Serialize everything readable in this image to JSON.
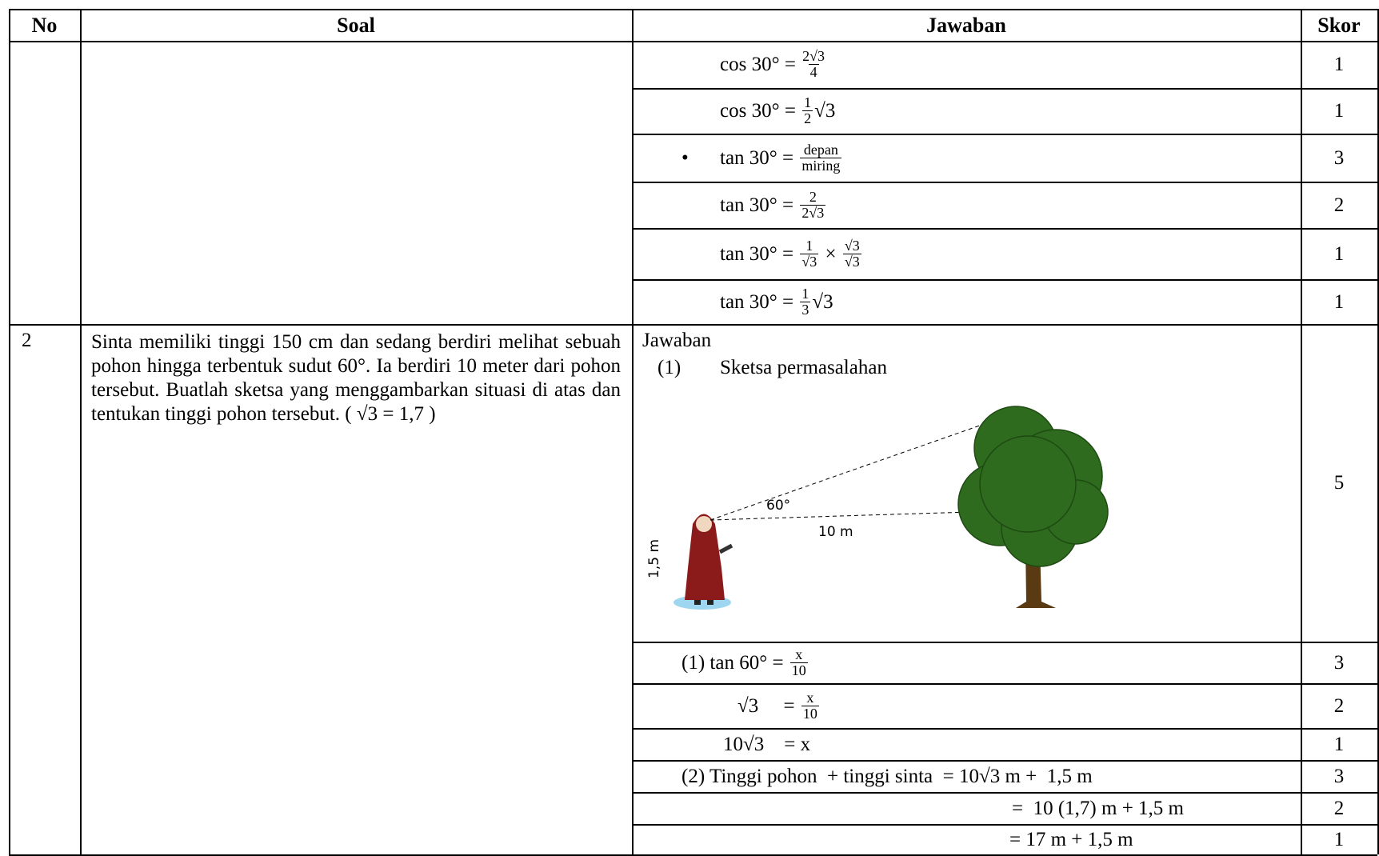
{
  "table": {
    "header": [
      "No",
      "Soal",
      "Jawaban",
      "Skor"
    ],
    "q1_rows": [
      {
        "answer": [
          "cos 30° = ",
          {
            "num": "2√3",
            "den": "4"
          }
        ],
        "score": 1
      },
      {
        "answer": [
          "cos 30° = ",
          {
            "num": "1",
            "den": "2"
          },
          "√3"
        ],
        "score": 1
      },
      {
        "bullet": "•",
        "answer": [
          "tan 30° = ",
          {
            "num": "depan",
            "den": "miring"
          }
        ],
        "score": 3
      },
      {
        "answer": [
          "tan 30° = ",
          {
            "num": "2",
            "den": "2√3"
          }
        ],
        "score": 2
      },
      {
        "answer": [
          "tan 30° = ",
          {
            "num": "1",
            "den": "√3"
          },
          " × ",
          {
            "num": "√3",
            "den": "√3"
          }
        ],
        "score": 1
      },
      {
        "answer": [
          "tan 30° = ",
          {
            "num": "1",
            "den": "3"
          },
          "√3"
        ],
        "score": 1
      }
    ],
    "q2": {
      "no": "2",
      "question": "Sinta memiliki tinggi 150 cm dan sedang berdiri melihat sebuah pohon hingga terbentuk sudut 60°. Ia berdiri 10 meter dari pohon tersebut. Buatlah sketsa yang menggambarkan situasi di atas dan tentukan tinggi pohon tersebut. ( √3 = 1,7 )",
      "answer_title": "Jawaban",
      "step_no": "(1)",
      "step_title": "Sketsa permasalahan",
      "figure": {
        "angle": "60°",
        "distance": "10 m",
        "height": "1,5 m"
      },
      "score": 5,
      "rows": [
        {
          "answer": [
            "(1) tan 60° = ",
            {
              "num": "x",
              "den": "10"
            }
          ],
          "score": 3
        },
        {
          "answer": [
            "√3     = ",
            {
              "num": "x",
              "den": "10"
            }
          ],
          "score": 2
        },
        {
          "answer": [
            "10√3    = x"
          ],
          "score": 1
        },
        {
          "answer": [
            "(2) Tinggi pohon  + tinggi sinta  = 10√3 m +  1,5 m"
          ],
          "score": 3
        },
        {
          "answer": [
            "=  10 (1,7) m + 1,5 m"
          ],
          "score": 2
        },
        {
          "answer": [
            "= 17 m + 1,5 m"
          ],
          "score": 1
        }
      ]
    }
  }
}
